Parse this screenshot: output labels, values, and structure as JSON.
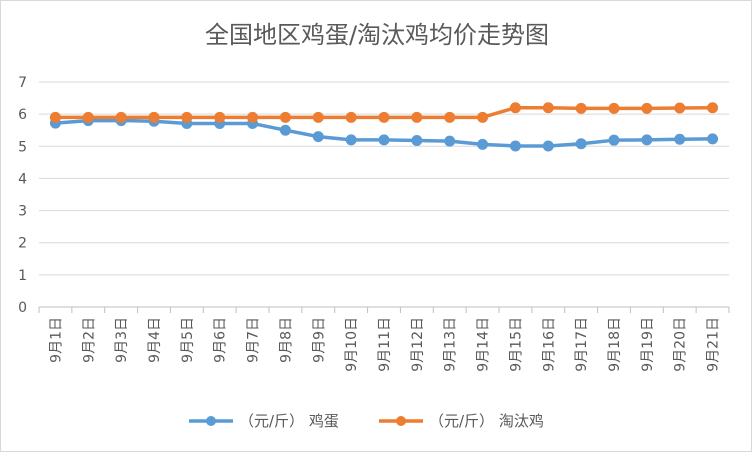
{
  "chart_data": {
    "type": "line",
    "title": "全国地区鸡蛋/淘汰鸡均价走势图",
    "categories": [
      "9月1日",
      "9月2日",
      "9月3日",
      "9月4日",
      "9月5日",
      "9月6日",
      "9月7日",
      "9月8日",
      "9月9日",
      "9月10日",
      "9月11日",
      "9月12日",
      "9月13日",
      "9月14日",
      "9月15日",
      "9月16日",
      "9月17日",
      "9月18日",
      "9月19日",
      "9月20日",
      "9月21日"
    ],
    "y_ticks": [
      "0",
      "1",
      "2",
      "3",
      "4",
      "5",
      "6",
      "7"
    ],
    "ylim": [
      0,
      7
    ],
    "grid": true,
    "legend_position": "bottom",
    "series": [
      {
        "name": "（元/斤） 鸡蛋",
        "color": "#5B9BD5",
        "values": [
          5.72,
          5.8,
          5.8,
          5.78,
          5.71,
          5.71,
          5.71,
          5.5,
          5.3,
          5.2,
          5.2,
          5.18,
          5.16,
          5.06,
          5.01,
          5.01,
          5.08,
          5.19,
          5.2,
          5.22,
          5.23
        ]
      },
      {
        "name": "（元/斤） 淘汰鸡",
        "color": "#ED7D31",
        "values": [
          5.9,
          5.9,
          5.9,
          5.9,
          5.9,
          5.9,
          5.9,
          5.9,
          5.9,
          5.9,
          5.9,
          5.9,
          5.9,
          5.9,
          6.2,
          6.2,
          6.18,
          6.18,
          6.18,
          6.19,
          6.2
        ]
      }
    ]
  }
}
